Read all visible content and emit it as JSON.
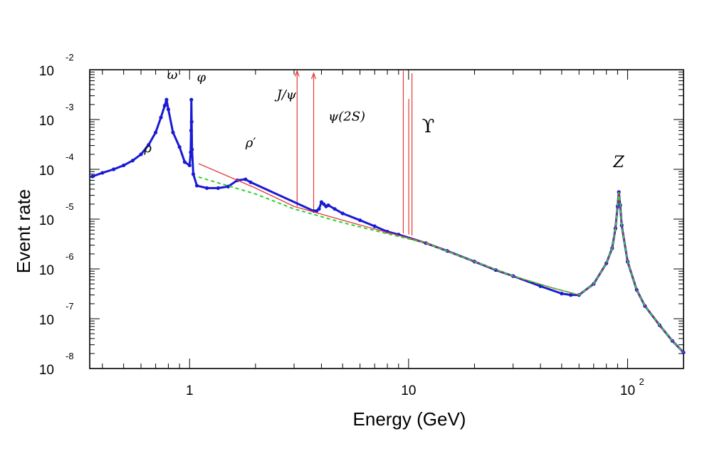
{
  "chart_data": {
    "type": "scatter",
    "xlabel": "Energy (GeV)",
    "ylabel": "Event rate",
    "x_scale": "log",
    "y_scale": "log",
    "xlim": [
      0.35,
      180
    ],
    "ylim": [
      1e-08,
      0.01
    ],
    "x_ticks": [
      {
        "value": 1,
        "base": "1",
        "exp": ""
      },
      {
        "value": 10,
        "base": "10",
        "exp": ""
      },
      {
        "value": 100,
        "base": "10",
        "exp": "2"
      }
    ],
    "y_ticks": [
      {
        "value": 0.01,
        "base": "10",
        "exp": "-2"
      },
      {
        "value": 0.001,
        "base": "10",
        "exp": "-3"
      },
      {
        "value": 0.0001,
        "base": "10",
        "exp": "-4"
      },
      {
        "value": 1e-05,
        "base": "10",
        "exp": "-5"
      },
      {
        "value": 1e-06,
        "base": "10",
        "exp": "-6"
      },
      {
        "value": 1e-07,
        "base": "10",
        "exp": "-7"
      },
      {
        "value": 1e-08,
        "base": "10",
        "exp": "-8"
      }
    ],
    "annotations": [
      {
        "text": "ω",
        "x": 0.79,
        "y": 0.0065
      },
      {
        "text": "φ",
        "x": 1.08,
        "y": 0.0058
      },
      {
        "text": "ρ",
        "x": 0.62,
        "y": 0.00022
      },
      {
        "text": "ρ′",
        "x": 1.8,
        "y": 0.00028
      },
      {
        "text": "J/ψ",
        "x": 2.5,
        "y": 0.0026
      },
      {
        "text": "ψ(2S)",
        "x": 4.3,
        "y": 0.00095
      },
      {
        "text": "ϒ",
        "x": 11.5,
        "y": 0.00055
      },
      {
        "text": "Z",
        "x": 86,
        "y": 0.00011
      }
    ],
    "series": [
      {
        "color": "#1a1ad4",
        "style": "points",
        "x": [
          0.36,
          0.4,
          0.45,
          0.5,
          0.55,
          0.6,
          0.65,
          0.7,
          0.74,
          0.77,
          0.785,
          0.8,
          0.84,
          0.9,
          0.95,
          1.0,
          1.012,
          1.016,
          1.019,
          1.022,
          1.026,
          1.04,
          1.08,
          1.2,
          1.35,
          1.5,
          1.65,
          1.8,
          1.9,
          3.7,
          3.8,
          3.9,
          4.0,
          4.1,
          4.2,
          4.3,
          4.6,
          5.0,
          6.0,
          7.0,
          8.0,
          9.0,
          12.0,
          15.0,
          20.0,
          25.0,
          30.0,
          40.0,
          50.0,
          55.0,
          60.0,
          70.0,
          80.0,
          85.0,
          88.0,
          90.0,
          91.2,
          92.5,
          94.0,
          100.0,
          110.0,
          120.0,
          140.0,
          160.0,
          180.0
        ],
        "y": [
          7.2e-05,
          8.5e-05,
          0.0001,
          0.00012,
          0.00015,
          0.0002,
          0.00031,
          0.00055,
          0.0011,
          0.0019,
          0.0025,
          0.0016,
          0.00055,
          0.00028,
          0.00014,
          0.00012,
          0.00022,
          0.0006,
          0.0025,
          0.0009,
          0.00025,
          8e-05,
          4.7e-05,
          4.2e-05,
          4.2e-05,
          4.5e-05,
          6e-05,
          6.3e-05,
          5.5e-05,
          1.45e-05,
          1.45e-05,
          1.6e-05,
          2.2e-05,
          2e-05,
          1.8e-05,
          1.9e-05,
          1.6e-05,
          1.3e-05,
          9.5e-06,
          7.2e-06,
          5.6e-06,
          4.9e-06,
          3.3e-06,
          2.3e-06,
          1.4e-06,
          9.5e-07,
          7.2e-07,
          4.5e-07,
          3.2e-07,
          3e-07,
          3e-07,
          5e-07,
          1.3e-06,
          2.6e-06,
          6.5e-06,
          1.8e-05,
          3.5e-05,
          1.9e-05,
          7.5e-06,
          1.4e-06,
          3.8e-07,
          1.8e-07,
          7.4e-08,
          3.6e-08,
          2.1e-08
        ]
      },
      {
        "color": "#e23a3a",
        "style": "line",
        "x": [
          1.1,
          2.0,
          3.0,
          5.0,
          8.0,
          12.0,
          20.0,
          30.0,
          45.0,
          60.0,
          70.0,
          80.0,
          85.0,
          88.0,
          90.0,
          91.2,
          92.5,
          94.0,
          100.0,
          110.0,
          120.0,
          140.0,
          160.0,
          180.0
        ],
        "y": [
          0.00013,
          4.2e-05,
          1.8e-05,
          9.5e-06,
          5.4e-06,
          3.4e-06,
          1.4e-06,
          7.2e-07,
          4.2e-07,
          3e-07,
          5e-07,
          1.3e-06,
          2.6e-06,
          6.5e-06,
          1.8e-05,
          3.5e-05,
          1.9e-05,
          7.5e-06,
          1.4e-06,
          3.8e-07,
          1.8e-07,
          7.4e-08,
          3.6e-08,
          2.1e-08
        ]
      },
      {
        "color": "#2fd22f",
        "style": "dashed",
        "x": [
          1.1,
          2.0,
          3.0,
          5.0,
          8.0,
          12.0,
          20.0,
          30.0,
          45.0,
          60.0,
          70.0,
          80.0,
          85.0,
          88.0,
          90.0,
          91.2,
          92.5,
          94.0,
          100.0,
          110.0,
          120.0,
          140.0,
          160.0,
          180.0
        ],
        "y": [
          7e-05,
          3.2e-05,
          1.6e-05,
          8.5e-06,
          5.1e-06,
          3.3e-06,
          1.4e-06,
          7.2e-07,
          4.2e-07,
          3e-07,
          5e-07,
          1.3e-06,
          2.6e-06,
          6.5e-06,
          1.8e-05,
          3.5e-05,
          1.9e-05,
          7.5e-06,
          1.4e-06,
          3.8e-07,
          1.8e-07,
          7.4e-08,
          3.6e-08,
          2.1e-08
        ]
      }
    ],
    "resonance_spikes": [
      {
        "label": "J/ψ",
        "x": 3.097,
        "y_base": 1.8e-05,
        "y_peak": 0.0095,
        "arrow": true
      },
      {
        "label": "ψ(2S)",
        "x": 3.686,
        "y_base": 1.4e-05,
        "y_peak": 0.0085,
        "arrow": true
      },
      {
        "label": "ϒ(1S)",
        "x": 9.46,
        "y_base": 5.2e-06,
        "y_peak": 0.0095,
        "arrow": false
      },
      {
        "label": "ϒ(2S)",
        "x": 10.02,
        "y_base": 4.9e-06,
        "y_peak": 0.0026,
        "arrow": false
      },
      {
        "label": "ϒ(3S)",
        "x": 10.36,
        "y_base": 4.7e-06,
        "y_peak": 0.0085,
        "arrow": false
      }
    ],
    "grid": false,
    "legend": "none"
  }
}
